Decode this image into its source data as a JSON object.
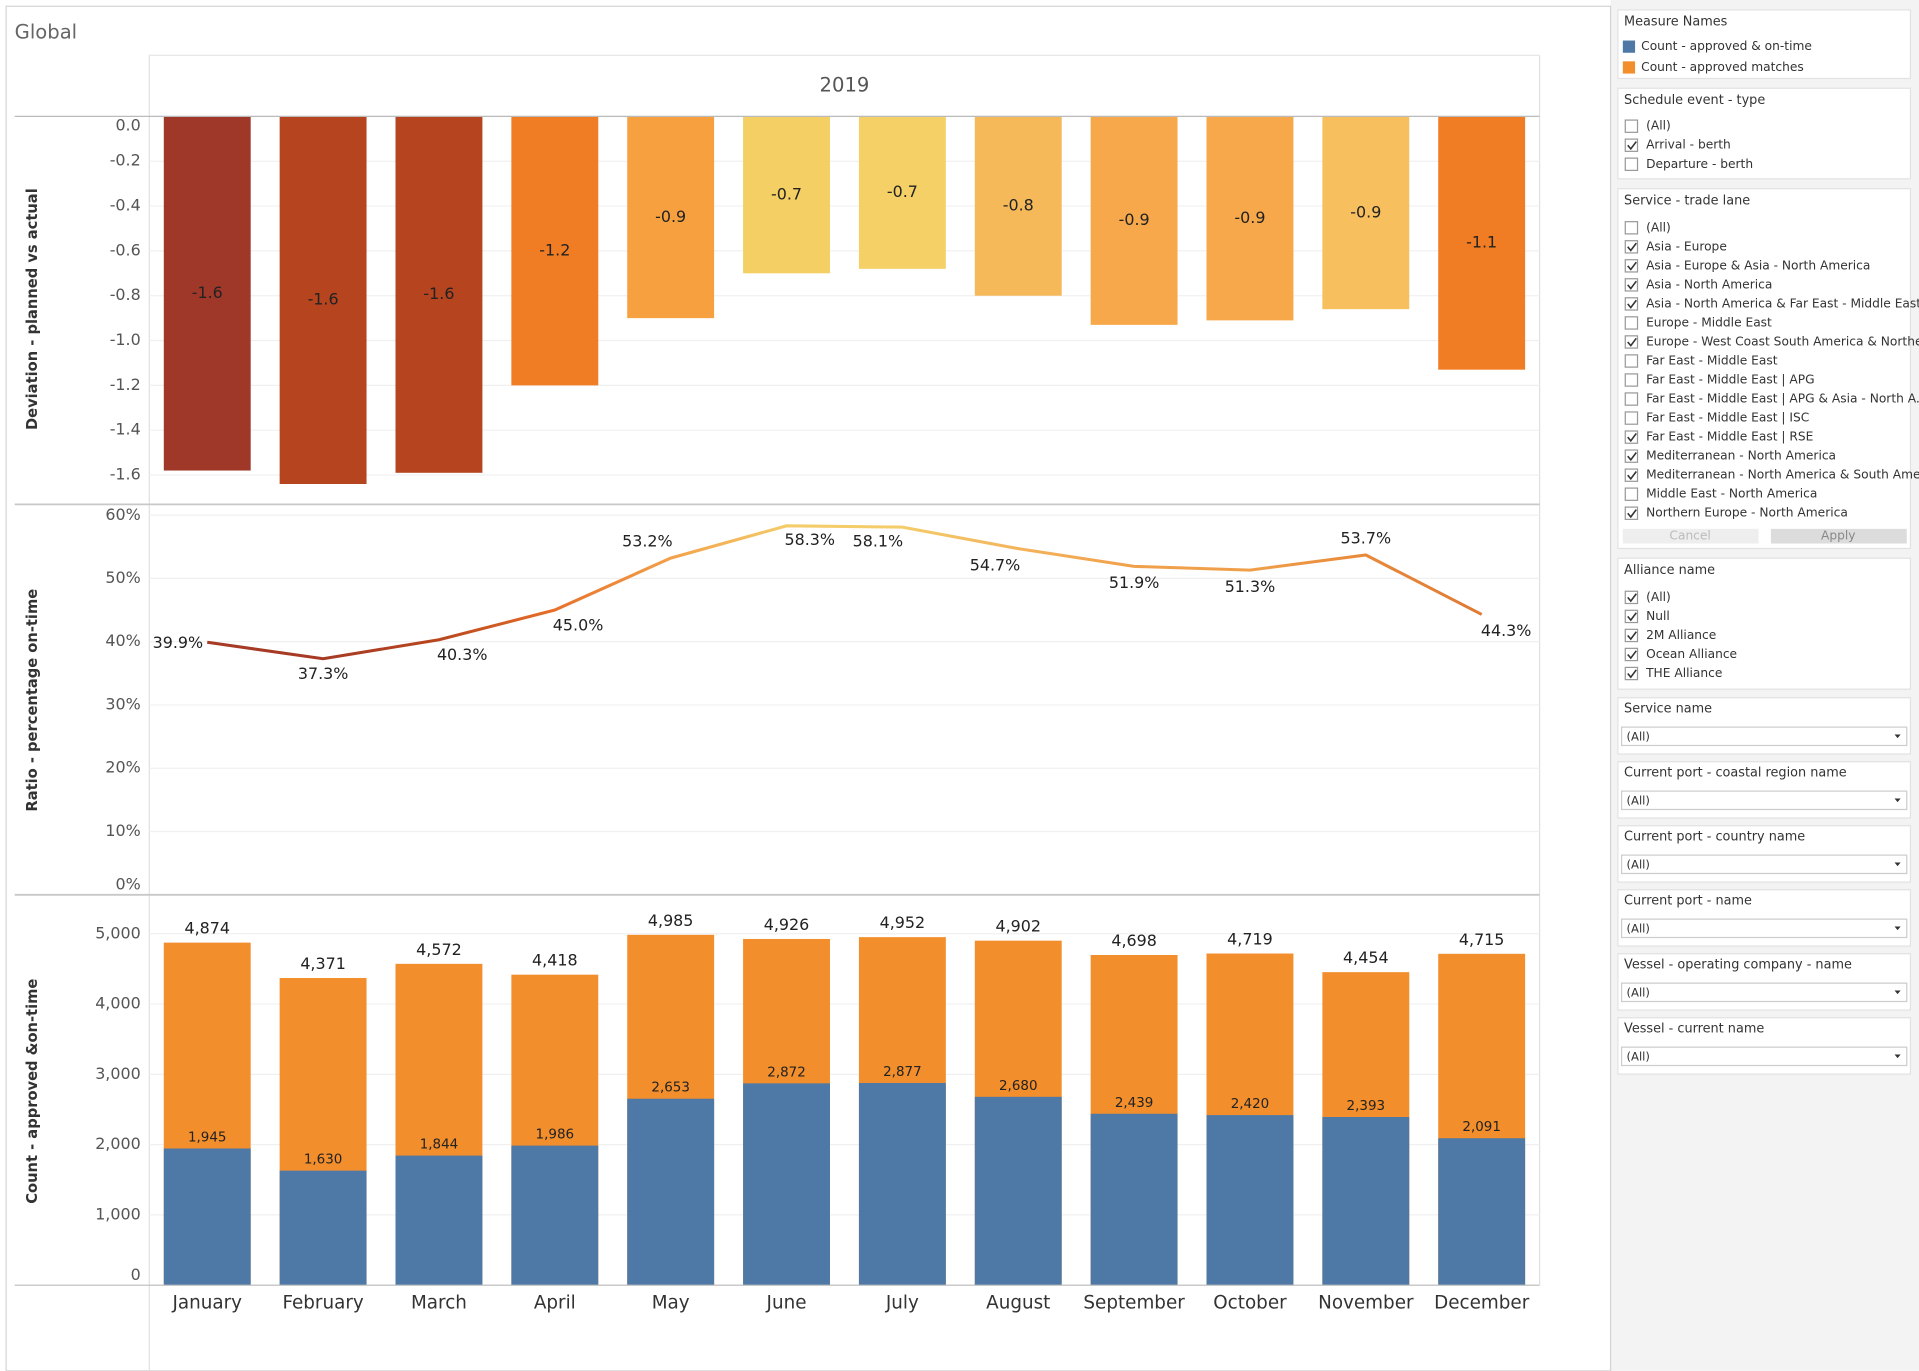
{
  "title": "Global",
  "column_header": "2019",
  "chart_data": [
    {
      "type": "bar",
      "y_label": "Deviation - planned vs actual",
      "values": [
        -1.58,
        -1.64,
        -1.59,
        -1.2,
        -0.9,
        -0.7,
        -0.68,
        -0.8,
        -0.93,
        -0.91,
        -0.86,
        -1.13
      ],
      "value_labels": [
        "-1.6",
        "-1.6",
        "-1.6",
        "-1.2",
        "-0.9",
        "-0.7",
        "-0.7",
        "-0.8",
        "-0.9",
        "-0.9",
        "-0.9",
        "-1.1"
      ],
      "colors": [
        "#a0382a",
        "#b5441f",
        "#b5441f",
        "#f07d23",
        "#f7a040",
        "#f4cf63",
        "#f4d066",
        "#f6b95a",
        "#f7a84a",
        "#f7a84a",
        "#f7bf5d",
        "#f07d23"
      ],
      "ylim": [
        -1.72,
        0
      ],
      "yticks": [
        {
          "value": 0,
          "label": "0.0"
        },
        -0.2,
        -0.4,
        -0.6,
        -0.8,
        {
          "value": -1,
          "label": "-1.0"
        },
        -1.2,
        -1.4,
        -1.6
      ],
      "grid": true
    },
    {
      "type": "line",
      "y_label": "Ratio - percentage on-time",
      "values": [
        39.9,
        37.3,
        40.3,
        45.0,
        53.2,
        58.3,
        58.1,
        54.7,
        51.9,
        51.3,
        53.7,
        44.3
      ],
      "value_labels": [
        "39.9%",
        "37.3%",
        "40.3%",
        "45.0%",
        "53.2%",
        "58.3%",
        "58.1%",
        "54.7%",
        "51.9%",
        "51.3%",
        "53.7%",
        "44.3%"
      ],
      "colors": [
        "#a63a24",
        "#a63a24",
        "#b8461e",
        "#e8702a",
        "#f3a14a",
        "#f4cc6a",
        "#f4cc6a",
        "#f4b35c",
        "#f0a04a",
        "#ef9f4a",
        "#e8893a",
        "#e07a35"
      ],
      "ylim": [
        0,
        61.5
      ],
      "yticks": [
        {
          "value": 0,
          "label": "0%"
        },
        {
          "value": 10,
          "label": "10%"
        },
        {
          "value": 20,
          "label": "20%"
        },
        {
          "value": 30,
          "label": "30%"
        },
        {
          "value": 40,
          "label": "40%"
        },
        {
          "value": 50,
          "label": "50%"
        },
        {
          "value": 60,
          "label": "60%"
        }
      ],
      "grid": true
    },
    {
      "type": "overlap_bar",
      "y_label": "Count - approved &on-time",
      "categories": [
        "January",
        "February",
        "March",
        "April",
        "May",
        "June",
        "July",
        "August",
        "September",
        "October",
        "November",
        "December"
      ],
      "series": [
        {
          "name": "Count - approved & on-time",
          "color": "#4e79a7",
          "values": [
            1945,
            1630,
            1844,
            1986,
            2653,
            2872,
            2877,
            2680,
            2439,
            2420,
            2393,
            2091
          ],
          "value_labels": [
            "1,945",
            "1,630",
            "1,844",
            "1,986",
            "2,653",
            "2,872",
            "2,877",
            "2,680",
            "2,439",
            "2,420",
            "2,393",
            "2,091"
          ]
        },
        {
          "name": "Count - approved matches",
          "color": "#f28e2b",
          "values": [
            4874,
            4371,
            4572,
            4418,
            4985,
            4926,
            4952,
            4902,
            4698,
            4719,
            4454,
            4715
          ],
          "value_labels": [
            "4,874",
            "4,371",
            "4,572",
            "4,418",
            "4,985",
            "4,926",
            "4,952",
            "4,902",
            "4,698",
            "4,719",
            "4,454",
            "4,715"
          ]
        }
      ],
      "ylim": [
        0,
        5520
      ],
      "yticks": [
        0,
        {
          "value": 1000,
          "label": "1,000"
        },
        {
          "value": 2000,
          "label": "2,000"
        },
        {
          "value": 3000,
          "label": "3,000"
        },
        {
          "value": 4000,
          "label": "4,000"
        },
        {
          "value": 5000,
          "label": "5,000"
        }
      ],
      "grid": true
    }
  ],
  "sidebar": {
    "legend_title": "Measure Names",
    "filters": [
      {
        "title": "Schedule event - type",
        "items": [
          {
            "label": "(All)",
            "checked": false
          },
          {
            "label": "Arrival - berth",
            "checked": true
          },
          {
            "label": "Departure - berth",
            "checked": false
          }
        ]
      },
      {
        "title": "Service - trade lane",
        "items": [
          {
            "label": "(All)",
            "checked": false
          },
          {
            "label": "Asia - Europe",
            "checked": true
          },
          {
            "label": "Asia - Europe & Asia - North America",
            "checked": true
          },
          {
            "label": "Asia - North America",
            "checked": true
          },
          {
            "label": "Asia - North America & Far East - Middle East...",
            "checked": true
          },
          {
            "label": "Europe - Middle East",
            "checked": false
          },
          {
            "label": "Europe - West Coast South America & Northe...",
            "checked": true
          },
          {
            "label": "Far East - Middle East",
            "checked": false
          },
          {
            "label": "Far East - Middle East | APG",
            "checked": false
          },
          {
            "label": "Far East - Middle East | APG & Asia - North A...",
            "checked": false
          },
          {
            "label": "Far East - Middle East | ISC",
            "checked": false
          },
          {
            "label": "Far East - Middle East | RSE",
            "checked": true
          },
          {
            "label": "Mediterranean - North America",
            "checked": true
          },
          {
            "label": "Mediterranean - North America & South Ame...",
            "checked": true
          },
          {
            "label": "Middle East - North America",
            "checked": false
          },
          {
            "label": "Northern Europe - North America",
            "checked": true
          }
        ],
        "buttons": [
          "Cancel",
          "Apply"
        ]
      },
      {
        "title": "Alliance name",
        "items": [
          {
            "label": "(All)",
            "checked": true
          },
          {
            "label": "Null",
            "checked": true
          },
          {
            "label": "2M Alliance",
            "checked": true
          },
          {
            "label": "Ocean Alliance",
            "checked": true
          },
          {
            "label": "THE Alliance",
            "checked": true
          }
        ]
      }
    ],
    "dropdowns": [
      {
        "title": "Service name",
        "value": "(All)"
      },
      {
        "title": "Current port - coastal region name",
        "value": "(All)"
      },
      {
        "title": "Current port - country name",
        "value": "(All)"
      },
      {
        "title": "Current port - name",
        "value": "(All)"
      },
      {
        "title": "Vessel - operating company - name",
        "value": "(All)"
      },
      {
        "title": "Vessel - current name",
        "value": "(All)"
      }
    ]
  }
}
